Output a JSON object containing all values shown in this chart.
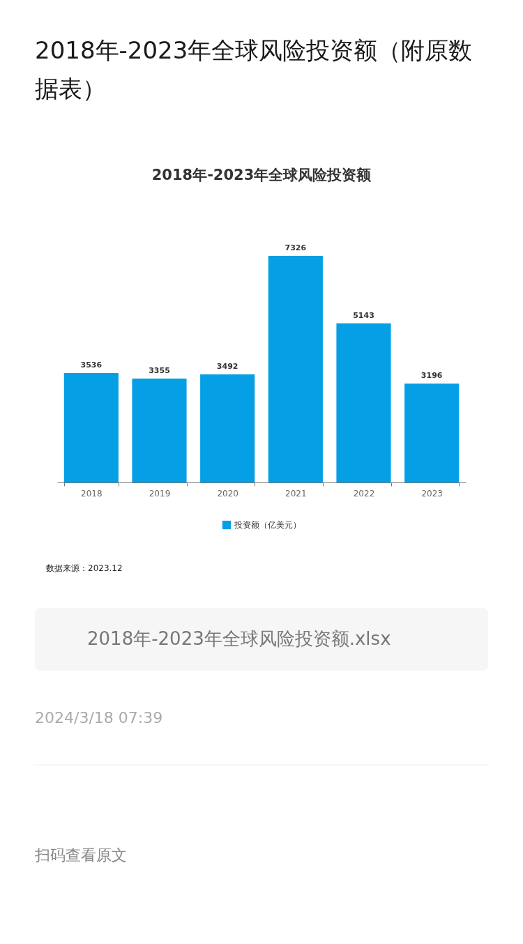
{
  "chart_data": {
    "type": "bar",
    "title": "2018年-2023年全球风险投资额（附原数据表）",
    "subtitle": "2018年-2023年全球风险投资额",
    "categories": [
      "2018",
      "2019",
      "2020",
      "2021",
      "2022",
      "2023"
    ],
    "series": [
      {
        "name": "投资额（亿美元）",
        "color": "#049fe4",
        "values": [
          3536,
          3355,
          3492,
          7326,
          5143,
          3196
        ]
      }
    ],
    "data_labels": true,
    "legend": "bottom",
    "grid": false,
    "tick_labels": "x",
    "annotations": [
      "数据来源：2023.12",
      "2018年-2023年全球风险投资额.xlsx",
      "2024/3/18 07:39",
      "扫码查看原文"
    ]
  }
}
